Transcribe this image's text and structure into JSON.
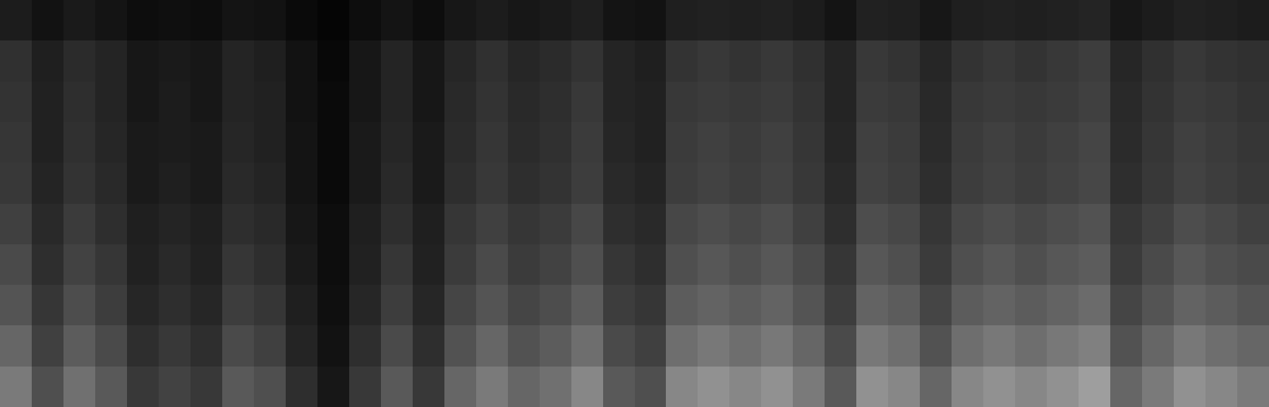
{
  "chart_data": {
    "type": "heatmap",
    "color": "gray",
    "tick_labels": false,
    "zlim": [
      0,
      100
    ],
    "z": [
      [
        48,
        31,
        44,
        35,
        22,
        26,
        22,
        35,
        31,
        18,
        9,
        22,
        35,
        22,
        40,
        48,
        40,
        44,
        53,
        35,
        31,
        53,
        57,
        53,
        57,
        48,
        35,
        57,
        53,
        40,
        53,
        57,
        53,
        57,
        62,
        40,
        48,
        57,
        53,
        48
      ],
      [
        40,
        25,
        36,
        29,
        18,
        22,
        18,
        29,
        25,
        14,
        7,
        18,
        29,
        18,
        32,
        40,
        32,
        36,
        43,
        29,
        25,
        43,
        47,
        43,
        47,
        40,
        29,
        47,
        43,
        32,
        43,
        47,
        43,
        47,
        50,
        32,
        40,
        47,
        43,
        40
      ],
      [
        33,
        21,
        30,
        24,
        15,
        18,
        15,
        24,
        21,
        12,
        6,
        15,
        24,
        15,
        27,
        33,
        27,
        30,
        36,
        24,
        21,
        36,
        39,
        36,
        39,
        33,
        24,
        39,
        36,
        27,
        36,
        39,
        36,
        39,
        42,
        27,
        33,
        39,
        36,
        33
      ],
      [
        29,
        18,
        26,
        21,
        13,
        16,
        13,
        21,
        18,
        10,
        5,
        13,
        21,
        13,
        23,
        29,
        23,
        26,
        31,
        21,
        18,
        31,
        34,
        31,
        34,
        29,
        21,
        34,
        31,
        23,
        31,
        34,
        31,
        34,
        36,
        23,
        29,
        34,
        31,
        29
      ],
      [
        25,
        16,
        23,
        18,
        12,
        14,
        12,
        18,
        16,
        9,
        5,
        12,
        18,
        12,
        21,
        25,
        21,
        23,
        28,
        18,
        16,
        28,
        30,
        28,
        30,
        25,
        18,
        30,
        28,
        21,
        28,
        30,
        28,
        30,
        32,
        21,
        25,
        30,
        28,
        25
      ],
      [
        22,
        14,
        20,
        16,
        10,
        12,
        10,
        16,
        14,
        8,
        4,
        10,
        16,
        10,
        18,
        22,
        18,
        20,
        24,
        16,
        14,
        24,
        26,
        24,
        26,
        22,
        16,
        26,
        24,
        18,
        24,
        26,
        24,
        26,
        28,
        18,
        22,
        26,
        24,
        22
      ],
      [
        21,
        13,
        19,
        15,
        10,
        11,
        10,
        15,
        13,
        8,
        4,
        10,
        15,
        10,
        17,
        21,
        17,
        19,
        23,
        15,
        13,
        23,
        25,
        23,
        25,
        21,
        15,
        25,
        23,
        17,
        23,
        25,
        23,
        25,
        27,
        17,
        21,
        25,
        23,
        21
      ],
      [
        20,
        13,
        18,
        14,
        9,
        11,
        9,
        14,
        13,
        7,
        4,
        9,
        14,
        9,
        16,
        20,
        16,
        18,
        22,
        14,
        13,
        22,
        23,
        22,
        23,
        20,
        14,
        23,
        22,
        16,
        22,
        23,
        22,
        23,
        25,
        16,
        20,
        23,
        22,
        20
      ],
      [
        19,
        12,
        17,
        14,
        9,
        10,
        9,
        14,
        12,
        7,
        3,
        9,
        14,
        9,
        15,
        19,
        15,
        17,
        20,
        14,
        12,
        20,
        22,
        20,
        22,
        19,
        14,
        22,
        20,
        15,
        20,
        22,
        20,
        22,
        24,
        15,
        19,
        22,
        20,
        19
      ],
      [
        11,
        7,
        10,
        8,
        5,
        6,
        5,
        8,
        7,
        4,
        2,
        5,
        8,
        5,
        9,
        11,
        9,
        10,
        12,
        8,
        7,
        12,
        13,
        12,
        13,
        11,
        8,
        13,
        12,
        9,
        12,
        13,
        12,
        13,
        14,
        9,
        11,
        13,
        12,
        11
      ]
    ]
  }
}
